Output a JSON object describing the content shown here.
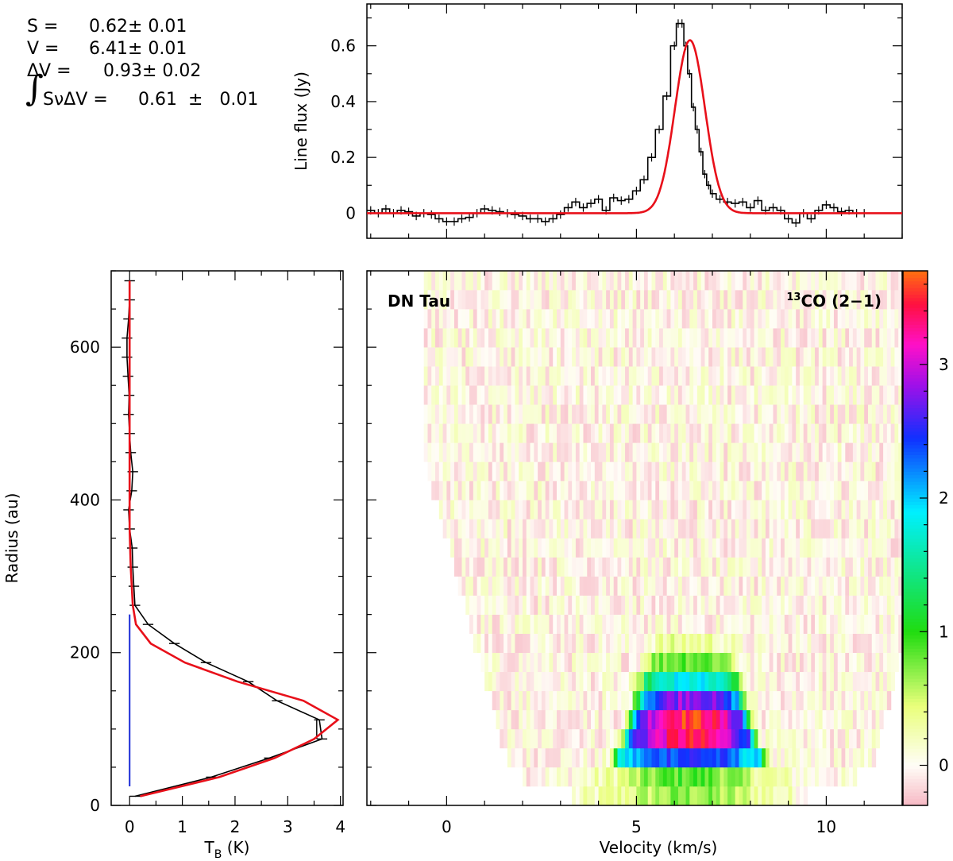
{
  "stats": {
    "S_label": "S =",
    "S_value": "0.62± 0.01",
    "V_label": "V =",
    "V_value": "6.41± 0.01",
    "dV_label": "ΔV =",
    "dV_value": "0.93± 0.02",
    "integral_sign": "∫",
    "integral_expr": "SνΔV =",
    "integral_value": "0.61  ±   0.01"
  },
  "colors": {
    "data": "#000000",
    "model": "#e8101a",
    "marker": "#1a2bd6"
  },
  "chart_data": [
    {
      "id": "spectrum",
      "type": "line",
      "ylabel": "Line flux (Jy)",
      "xlim": [
        -2.1,
        12.0
      ],
      "ylim": [
        -0.09,
        0.75
      ],
      "yticks": [
        0,
        0.2,
        0.4,
        0.6
      ],
      "ytick_labels": [
        "0",
        "0.2",
        "0.4",
        "0.6"
      ],
      "xticks": [
        0,
        5,
        10
      ],
      "series": [
        {
          "style": "histogram-with-errorbars",
          "x": [
            -2.0,
            -1.8,
            -1.6,
            -1.4,
            -1.2,
            -1.0,
            -0.8,
            -0.6,
            -0.4,
            -0.2,
            0.0,
            0.2,
            0.4,
            0.6,
            0.8,
            1.0,
            1.2,
            1.4,
            1.6,
            1.8,
            2.0,
            2.2,
            2.4,
            2.6,
            2.8,
            3.0,
            3.2,
            3.4,
            3.6,
            3.8,
            4.0,
            4.2,
            4.4,
            4.6,
            4.8,
            5.0,
            5.2,
            5.4,
            5.6,
            5.8,
            6.0,
            6.1,
            6.2,
            6.3,
            6.4,
            6.5,
            6.6,
            6.7,
            6.8,
            6.9,
            7.0,
            7.2,
            7.4,
            7.6,
            7.8,
            8.0,
            8.2,
            8.4,
            8.6,
            8.8,
            9.0,
            9.2,
            9.4,
            9.6,
            9.8,
            10.0,
            10.2,
            10.4,
            10.6,
            10.8,
            11.0
          ],
          "y": [
            0.01,
            0.0,
            0.015,
            0.0,
            0.01,
            0.005,
            -0.01,
            0.0,
            -0.005,
            -0.02,
            -0.03,
            -0.03,
            -0.02,
            -0.015,
            0.0,
            0.015,
            0.01,
            0.005,
            0.0,
            -0.005,
            -0.01,
            -0.02,
            -0.02,
            -0.03,
            -0.02,
            -0.005,
            0.02,
            0.04,
            0.02,
            0.035,
            0.05,
            0.01,
            0.055,
            0.045,
            0.05,
            0.08,
            0.12,
            0.2,
            0.3,
            0.42,
            0.6,
            0.68,
            0.68,
            0.6,
            0.5,
            0.38,
            0.3,
            0.22,
            0.14,
            0.1,
            0.07,
            0.05,
            0.04,
            0.035,
            0.04,
            0.02,
            0.045,
            0.01,
            0.02,
            0.01,
            -0.02,
            -0.035,
            0.0,
            -0.02,
            0.01,
            0.03,
            0.02,
            0.005,
            0.01,
            0.0,
            0.0
          ],
          "yerr": 0.015,
          "color": "#000000"
        },
        {
          "style": "gaussian-fit",
          "peak": 0.62,
          "center": 6.41,
          "fwhm": 0.93,
          "color": "#e8101a"
        }
      ]
    },
    {
      "id": "radial-profile",
      "type": "line",
      "xlabel": "T",
      "xlabel_subscript": "B",
      "xlabel_unit": "(K)",
      "ylabel": "Radius (au)",
      "xlim": [
        -0.35,
        4.05
      ],
      "ylim": [
        0,
        700
      ],
      "xticks": [
        0,
        1,
        2,
        3,
        4
      ],
      "xtick_labels": [
        "0",
        "1",
        "2",
        "3",
        "4"
      ],
      "yticks": [
        0,
        200,
        400,
        600
      ],
      "ytick_labels": [
        "0",
        "200",
        "400",
        "600"
      ],
      "series": [
        {
          "style": "line-with-errorbars",
          "radius": [
            12,
            37,
            62,
            87,
            112,
            137,
            162,
            187,
            212,
            237,
            262,
            287,
            312,
            337,
            362,
            387,
            412,
            437,
            462,
            487,
            512,
            537,
            562,
            587,
            612,
            637,
            662,
            687
          ],
          "tb": [
            0.1,
            1.55,
            2.65,
            3.65,
            3.6,
            2.8,
            2.25,
            1.45,
            0.85,
            0.35,
            0.1,
            0.08,
            0.06,
            0.05,
            0.0,
            -0.02,
            0.04,
            0.06,
            0.02,
            0.0,
            -0.02,
            -0.01,
            -0.03,
            -0.05,
            -0.05,
            -0.02,
            0.0,
            0.0
          ],
          "xerr": 0.1,
          "color": "#000000"
        },
        {
          "style": "model",
          "radius": [
            12,
            37,
            62,
            87,
            112,
            137,
            162,
            187,
            212,
            237,
            262,
            287,
            312,
            337,
            362,
            387,
            412,
            437,
            462,
            487,
            512,
            537,
            562,
            587,
            612,
            637,
            662,
            687
          ],
          "tb": [
            0.2,
            1.7,
            2.75,
            3.5,
            3.95,
            3.3,
            2.05,
            1.05,
            0.4,
            0.12,
            0.06,
            0.04,
            0.02,
            0.01,
            0.0,
            0.0,
            0.0,
            0.0,
            0.0,
            0.0,
            0.0,
            0.0,
            0.0,
            0.0,
            0.0,
            0.0,
            0.0,
            0.0
          ],
          "color": "#e8101a"
        },
        {
          "style": "vertical-marker",
          "tb": 0.0,
          "radius_range": [
            25,
            250
          ],
          "color": "#1a2bd6"
        }
      ]
    },
    {
      "id": "pv-diagram",
      "type": "heatmap",
      "title_left": "DN Tau",
      "title_right_sup": "13",
      "title_right": "CO (2−1)",
      "xlabel": "Velocity (km/s)",
      "xlim": [
        -2.1,
        12.0
      ],
      "ylim": [
        0,
        700
      ],
      "xticks": [
        0,
        5,
        10
      ],
      "xtick_labels": [
        "0",
        "5",
        "10"
      ],
      "source_center_velocity": 6.41,
      "colorbar": {
        "range": [
          -0.3,
          3.7
        ],
        "ticks": [
          0,
          1,
          2,
          3
        ],
        "tick_labels": [
          "0",
          "1",
          "2",
          "3"
        ],
        "colormap": [
          "#f7b8c4",
          "#fffdf7",
          "#e9ff7a",
          "#20dc10",
          "#00f0ff",
          "#1030ff",
          "#a010e8",
          "#ff10c8",
          "#ff1040",
          "#ff7010"
        ]
      }
    }
  ]
}
